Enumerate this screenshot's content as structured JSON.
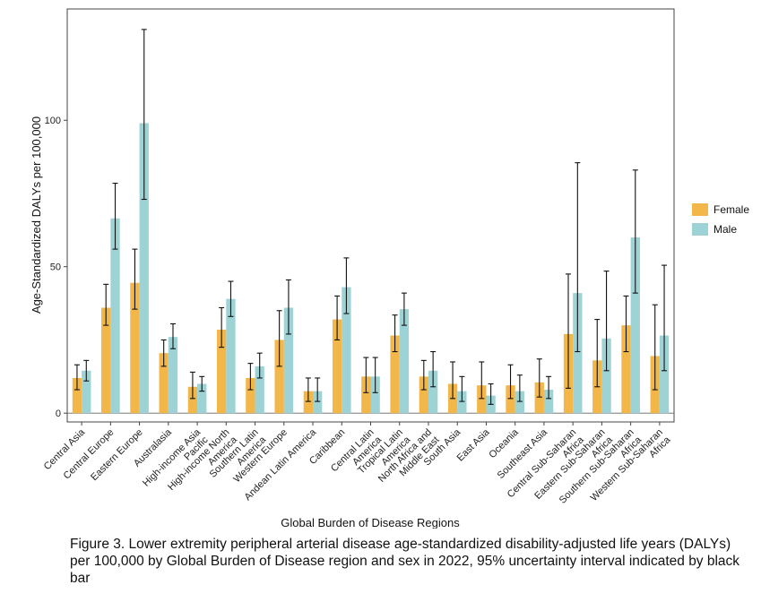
{
  "chart_data": {
    "type": "bar",
    "title": "",
    "xlabel": "Global Burden of Disease Regions",
    "ylabel": "Age-Standardized DALYs per 100,000",
    "ylim": [
      -3,
      138
    ],
    "yticks": [
      0,
      50,
      100
    ],
    "grid": false,
    "legend_position": "right",
    "categories": [
      "Central Asia",
      "Central Europe",
      "Eastern Europe",
      "Australasia",
      "High-income Asia Pacific",
      "High-income North America",
      "Southern Latin America",
      "Western Europe",
      "Andean Latin America",
      "Caribbean",
      "Central Latin America",
      "Tropical Latin America",
      "North Africa and Middle East",
      "South Asia",
      "East Asia",
      "Oceania",
      "Southeast Asia",
      "Central Sub-Saharan Africa",
      "Eastern Sub-Saharan Africa",
      "Southern Sub-Saharan Africa",
      "Western Sub-Saharan Africa"
    ],
    "category_label_lines": [
      [
        "Central Asia"
      ],
      [
        "Central Europe"
      ],
      [
        "Eastern Europe"
      ],
      [
        "Australasia"
      ],
      [
        "High-income Asia",
        "Pacific"
      ],
      [
        "High-income North",
        "America"
      ],
      [
        "Southern Latin",
        "America"
      ],
      [
        "Western Europe"
      ],
      [
        "Andean Latin America"
      ],
      [
        "Caribbean"
      ],
      [
        "Central Latin",
        "America"
      ],
      [
        "Tropical Latin",
        "America"
      ],
      [
        "North Africa and",
        "Middle East"
      ],
      [
        "South Asia"
      ],
      [
        "East Asia"
      ],
      [
        "Oceania"
      ],
      [
        "Southeast Asia"
      ],
      [
        "Central Sub-Saharan",
        "Africa"
      ],
      [
        "Eastern Sub-Saharan",
        "Africa"
      ],
      [
        "Southern Sub-Saharan",
        "Africa"
      ],
      [
        "Western Sub-Saharan",
        "Africa"
      ]
    ],
    "series": [
      {
        "name": "Female",
        "color": "#F2B649",
        "values": [
          12,
          36,
          44.5,
          20.5,
          9,
          28.5,
          12,
          25,
          7.5,
          32,
          12.5,
          26.5,
          12.5,
          10,
          9.5,
          9.5,
          10.5,
          27,
          18,
          30,
          19.5
        ],
        "lower": [
          8,
          30,
          35.5,
          16,
          5,
          22.5,
          8,
          16,
          4,
          25,
          7,
          21,
          8,
          5,
          5,
          5,
          5.5,
          8.5,
          9,
          21,
          8
        ],
        "upper": [
          16.5,
          44,
          56,
          25,
          14,
          36,
          17,
          35,
          12,
          40,
          19,
          33.5,
          18,
          17.5,
          17.5,
          16.5,
          18.5,
          47.5,
          32,
          40,
          37
        ]
      },
      {
        "name": "Male",
        "color": "#9ED3D6",
        "values": [
          14.5,
          66.5,
          99,
          26,
          10,
          39,
          16,
          36,
          7.5,
          43,
          12.5,
          35.5,
          14.5,
          7.5,
          6,
          7.5,
          8,
          41,
          25.5,
          60,
          26.5
        ],
        "lower": [
          11,
          56,
          73,
          22,
          7.5,
          33,
          12,
          27,
          4,
          34,
          7,
          30,
          9,
          4,
          3,
          4,
          5,
          21,
          14.5,
          41,
          14.5
        ],
        "upper": [
          18,
          78.5,
          131,
          30.5,
          12.5,
          45,
          20.5,
          45.5,
          12,
          53,
          19,
          41,
          21,
          12.5,
          10,
          13,
          12.5,
          85.5,
          48.5,
          83,
          50.5
        ]
      }
    ]
  },
  "caption": "Figure 3. Lower extremity peripheral arterial disease age-standardized disability-adjusted life years (DALYs) per 100,000 by Global Burden of Disease region and sex in 2022, 95% uncertainty interval indicated by black bar"
}
